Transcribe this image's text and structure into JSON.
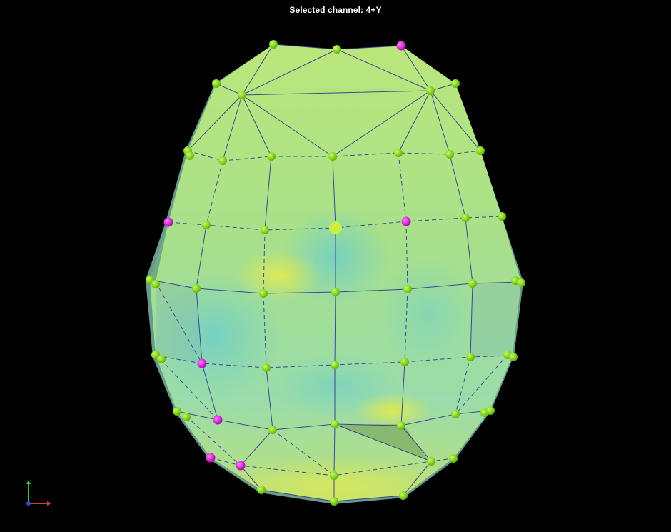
{
  "viewer": {
    "title": "Selected channel: 4+Y",
    "background": "#000000"
  },
  "colors": {
    "surface_green": "#b3e36d",
    "surface_cyan": "#6fcfb9",
    "surface_yellow": "#d6e45a",
    "edge": "#2a2f8f",
    "sensor": "#7de000",
    "sensor_highlight": "#e01ee0",
    "selected": "#c8f040",
    "axis_x": "#d04040",
    "axis_y": "#40c040",
    "axis_z": "#4040d0"
  },
  "icons": {
    "orientation": "axes-gizmo-icon"
  }
}
